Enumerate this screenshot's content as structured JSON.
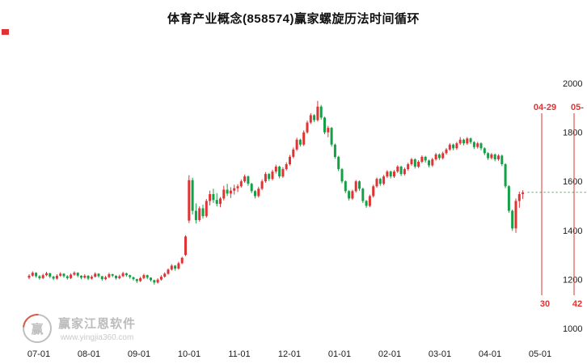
{
  "title": "体育产业概念(858574)赢家螺旋历法时间循环",
  "watermark": {
    "logo_text": "赢",
    "brand": "赢家江恩软件",
    "url": "www.yingjia360.com"
  },
  "colors": {
    "up": "#e03333",
    "down": "#14a046",
    "cycle": "#e03333",
    "dashed_line": "#2db14f",
    "axis_text": "#1a1a1a"
  },
  "chart_data": {
    "type": "candlestick",
    "title": "体育产业概念(858574)赢家螺旋历法时间循环",
    "x_ticks": [
      "07-01",
      "08-01",
      "09-01",
      "10-01",
      "11-01",
      "12-01",
      "01-01",
      "02-01",
      "03-01",
      "04-01",
      "05-01"
    ],
    "y_ticks": [
      1000,
      1200,
      1400,
      1600,
      1800,
      2000
    ],
    "ylim": [
      1000,
      2000
    ],
    "grid": false,
    "y_axis_side": "right",
    "dashed_level": 1555,
    "cycle_lines": [
      {
        "date_label": "04-29",
        "count_label": "30"
      },
      {
        "date_label": "05-",
        "count_label": "42"
      }
    ],
    "candles": [
      [
        1207,
        1221,
        1201,
        1215
      ],
      [
        1215,
        1233,
        1211,
        1227
      ],
      [
        1227,
        1229,
        1207,
        1213
      ],
      [
        1213,
        1217,
        1199,
        1205
      ],
      [
        1205,
        1223,
        1201,
        1217
      ],
      [
        1217,
        1231,
        1213,
        1225
      ],
      [
        1225,
        1227,
        1205,
        1211
      ],
      [
        1211,
        1215,
        1197,
        1203
      ],
      [
        1203,
        1221,
        1199,
        1215
      ],
      [
        1215,
        1229,
        1211,
        1223
      ],
      [
        1223,
        1225,
        1207,
        1213
      ],
      [
        1213,
        1217,
        1199,
        1205
      ],
      [
        1205,
        1225,
        1201,
        1219
      ],
      [
        1219,
        1233,
        1215,
        1227
      ],
      [
        1227,
        1229,
        1209,
        1215
      ],
      [
        1215,
        1217,
        1201,
        1207
      ],
      [
        1207,
        1221,
        1203,
        1215
      ],
      [
        1215,
        1217,
        1197,
        1203
      ],
      [
        1203,
        1217,
        1199,
        1211
      ],
      [
        1211,
        1229,
        1207,
        1223
      ],
      [
        1223,
        1225,
        1207,
        1213
      ],
      [
        1213,
        1215,
        1195,
        1201
      ],
      [
        1201,
        1215,
        1197,
        1209
      ],
      [
        1209,
        1227,
        1205,
        1221
      ],
      [
        1221,
        1223,
        1209,
        1215
      ],
      [
        1215,
        1217,
        1199,
        1205
      ],
      [
        1205,
        1219,
        1201,
        1213
      ],
      [
        1213,
        1231,
        1209,
        1225
      ],
      [
        1225,
        1227,
        1211,
        1217
      ],
      [
        1217,
        1219,
        1203,
        1209
      ],
      [
        1209,
        1211,
        1195,
        1201
      ],
      [
        1201,
        1203,
        1185,
        1193
      ],
      [
        1193,
        1211,
        1189,
        1205
      ],
      [
        1205,
        1223,
        1201,
        1217
      ],
      [
        1217,
        1219,
        1201,
        1207
      ],
      [
        1207,
        1209,
        1191,
        1197
      ],
      [
        1197,
        1199,
        1179,
        1187
      ],
      [
        1187,
        1205,
        1183,
        1199
      ],
      [
        1199,
        1217,
        1195,
        1211
      ],
      [
        1211,
        1229,
        1207,
        1223
      ],
      [
        1223,
        1245,
        1219,
        1240
      ],
      [
        1240,
        1262,
        1236,
        1256
      ],
      [
        1256,
        1258,
        1236,
        1244
      ],
      [
        1244,
        1272,
        1240,
        1266
      ],
      [
        1266,
        1292,
        1262,
        1288
      ],
      [
        1300,
        1380,
        1295,
        1375
      ],
      [
        1440,
        1625,
        1430,
        1605
      ],
      [
        1605,
        1615,
        1465,
        1480
      ],
      [
        1480,
        1510,
        1428,
        1442
      ],
      [
        1442,
        1498,
        1436,
        1490
      ],
      [
        1490,
        1505,
        1448,
        1458
      ],
      [
        1458,
        1528,
        1452,
        1520
      ],
      [
        1520,
        1562,
        1502,
        1548
      ],
      [
        1548,
        1570,
        1512,
        1524
      ],
      [
        1524,
        1552,
        1498,
        1508
      ],
      [
        1508,
        1536,
        1494,
        1530
      ],
      [
        1530,
        1582,
        1522,
        1566
      ],
      [
        1566,
        1590,
        1540,
        1550
      ],
      [
        1550,
        1576,
        1532,
        1562
      ],
      [
        1562,
        1586,
        1546,
        1572
      ],
      [
        1572,
        1588,
        1556,
        1580
      ],
      [
        1580,
        1608,
        1574,
        1600
      ],
      [
        1600,
        1628,
        1594,
        1620
      ],
      [
        1620,
        1624,
        1582,
        1590
      ],
      [
        1590,
        1594,
        1552,
        1560
      ],
      [
        1560,
        1564,
        1530,
        1540
      ],
      [
        1540,
        1578,
        1534,
        1570
      ],
      [
        1570,
        1608,
        1564,
        1600
      ],
      [
        1600,
        1638,
        1594,
        1630
      ],
      [
        1630,
        1634,
        1602,
        1610
      ],
      [
        1610,
        1648,
        1604,
        1640
      ],
      [
        1640,
        1668,
        1632,
        1660
      ],
      [
        1660,
        1664,
        1612,
        1620
      ],
      [
        1620,
        1658,
        1614,
        1650
      ],
      [
        1650,
        1678,
        1644,
        1670
      ],
      [
        1670,
        1708,
        1664,
        1700
      ],
      [
        1700,
        1738,
        1694,
        1730
      ],
      [
        1730,
        1778,
        1724,
        1770
      ],
      [
        1770,
        1774,
        1742,
        1750
      ],
      [
        1750,
        1808,
        1744,
        1800
      ],
      [
        1800,
        1848,
        1794,
        1840
      ],
      [
        1840,
        1878,
        1834,
        1870
      ],
      [
        1870,
        1874,
        1842,
        1850
      ],
      [
        1850,
        1928,
        1844,
        1905
      ],
      [
        1905,
        1912,
        1852,
        1860
      ],
      [
        1860,
        1864,
        1792,
        1800
      ],
      [
        1800,
        1826,
        1780,
        1818
      ],
      [
        1818,
        1822,
        1742,
        1750
      ],
      [
        1750,
        1754,
        1692,
        1700
      ],
      [
        1700,
        1704,
        1642,
        1650
      ],
      [
        1650,
        1654,
        1592,
        1600
      ],
      [
        1600,
        1604,
        1552,
        1560
      ],
      [
        1560,
        1564,
        1522,
        1530
      ],
      [
        1530,
        1566,
        1524,
        1560
      ],
      [
        1560,
        1606,
        1554,
        1600
      ],
      [
        1600,
        1604,
        1562,
        1570
      ],
      [
        1570,
        1574,
        1512,
        1520
      ],
      [
        1520,
        1524,
        1492,
        1500
      ],
      [
        1500,
        1546,
        1494,
        1540
      ],
      [
        1540,
        1586,
        1534,
        1580
      ],
      [
        1580,
        1616,
        1574,
        1610
      ],
      [
        1610,
        1614,
        1582,
        1590
      ],
      [
        1590,
        1626,
        1584,
        1620
      ],
      [
        1620,
        1646,
        1614,
        1640
      ],
      [
        1640,
        1644,
        1612,
        1620
      ],
      [
        1620,
        1646,
        1614,
        1640
      ],
      [
        1640,
        1666,
        1634,
        1660
      ],
      [
        1660,
        1664,
        1622,
        1630
      ],
      [
        1630,
        1656,
        1624,
        1650
      ],
      [
        1650,
        1676,
        1644,
        1670
      ],
      [
        1670,
        1696,
        1664,
        1690
      ],
      [
        1690,
        1694,
        1652,
        1660
      ],
      [
        1660,
        1686,
        1654,
        1680
      ],
      [
        1680,
        1706,
        1674,
        1700
      ],
      [
        1700,
        1704,
        1677,
        1685
      ],
      [
        1685,
        1689,
        1657,
        1665
      ],
      [
        1665,
        1696,
        1659,
        1690
      ],
      [
        1690,
        1716,
        1684,
        1710
      ],
      [
        1710,
        1714,
        1687,
        1695
      ],
      [
        1695,
        1721,
        1689,
        1715
      ],
      [
        1715,
        1736,
        1709,
        1730
      ],
      [
        1730,
        1756,
        1724,
        1750
      ],
      [
        1750,
        1754,
        1727,
        1735
      ],
      [
        1735,
        1761,
        1729,
        1755
      ],
      [
        1755,
        1781,
        1749,
        1770
      ],
      [
        1770,
        1774,
        1747,
        1755
      ],
      [
        1755,
        1781,
        1749,
        1775
      ],
      [
        1775,
        1779,
        1752,
        1760
      ],
      [
        1760,
        1764,
        1732,
        1740
      ],
      [
        1740,
        1761,
        1734,
        1755
      ],
      [
        1755,
        1759,
        1727,
        1735
      ],
      [
        1735,
        1739,
        1707,
        1715
      ],
      [
        1715,
        1719,
        1687,
        1695
      ],
      [
        1695,
        1716,
        1689,
        1710
      ],
      [
        1710,
        1714,
        1682,
        1690
      ],
      [
        1690,
        1711,
        1684,
        1705
      ],
      [
        1705,
        1709,
        1662,
        1670
      ],
      [
        1670,
        1674,
        1572,
        1580
      ],
      [
        1580,
        1584,
        1472,
        1480
      ],
      [
        1480,
        1485,
        1398,
        1408
      ],
      [
        1408,
        1530,
        1390,
        1520
      ],
      [
        1520,
        1558,
        1492,
        1548
      ],
      [
        1548,
        1564,
        1528,
        1555
      ]
    ]
  }
}
